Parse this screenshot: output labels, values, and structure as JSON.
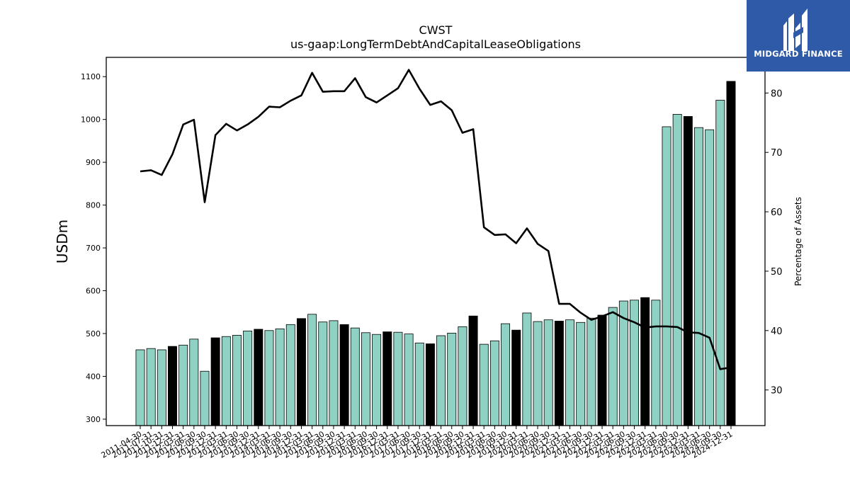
{
  "brand": {
    "name": "MIDGARD FINANCE"
  },
  "chart_data": {
    "type": "bar",
    "title": "CWST",
    "subtitle": "us-gaap:LongTermDebtAndCapitalLeaseObligations",
    "ylabel": "USDm",
    "y2label": "Percentage of Assets",
    "ylim": [
      285,
      1145
    ],
    "y2lim": [
      24,
      86
    ],
    "yticks": [
      300,
      400,
      500,
      600,
      700,
      800,
      900,
      1000,
      1100
    ],
    "y2ticks": [
      30,
      40,
      50,
      60,
      70,
      80
    ],
    "colors": {
      "bar": "#8fd1c2",
      "bar_year_end": "#000000",
      "line": "#000000"
    },
    "categories": [
      "2011-04-30",
      "2011-07-31",
      "2011-10-31",
      "2011-12-31",
      "2012-03-31",
      "2012-06-30",
      "2012-09-30",
      "2012-12-31",
      "2013-03-31",
      "2013-06-30",
      "2013-09-30",
      "2013-12-31",
      "2014-03-31",
      "2014-06-30",
      "2014-09-30",
      "2014-12-31",
      "2015-03-31",
      "2015-06-30",
      "2015-09-30",
      "2015-12-31",
      "2016-03-31",
      "2016-06-30",
      "2016-09-30",
      "2016-12-31",
      "2017-03-31",
      "2017-06-30",
      "2017-09-30",
      "2017-12-31",
      "2018-03-31",
      "2018-06-30",
      "2018-09-30",
      "2018-12-31",
      "2019-03-31",
      "2019-06-30",
      "2019-09-30",
      "2019-12-31",
      "2020-03-31",
      "2020-06-30",
      "2020-09-30",
      "2020-12-31",
      "2021-03-31",
      "2021-06-30",
      "2021-09-30",
      "2021-12-31",
      "2022-03-31",
      "2022-06-30",
      "2022-09-30",
      "2022-12-31",
      "2023-03-31",
      "2023-06-30",
      "2023-09-30",
      "2023-12-31",
      "2024-03-31",
      "2024-06-30",
      "2024-09-30",
      "2024-12-31"
    ],
    "xtick_labels": [
      "2011-04-30",
      "2011-07-31",
      "2011-10-31",
      "2011-12-31",
      "2012-03-31",
      "2012-06-30",
      "2012-09-30",
      "2012-12-31",
      "2013-03-31",
      "2013-06-30",
      "2013-09-30",
      "2013-12-31",
      "2014-03-31",
      "2014-06-30",
      "2014-09-30",
      "2014-12-31",
      "2015-03-31",
      "2015-06-30",
      "2015-09-30",
      "2015-12-31",
      "2016-03-31",
      "2016-06-30",
      "2016-09-30",
      "2016-12-31",
      "2017-03-31",
      "2017-06-30",
      "2017-09-30",
      "2017-12-31",
      "2018-03-31",
      "2018-06-30",
      "2018-09-30",
      "2018-12-31",
      "2019-03-31",
      "2019-06-30",
      "2019-09-30",
      "2019-12-31",
      "2020-03-31",
      "2020-06-30",
      "2020-09-30",
      "2020-12-31",
      "2021-03-31",
      "2021-06-30",
      "2021-09-30",
      "2021-12-31",
      "2022-03-31",
      "2022-06-30",
      "2022-09-30",
      "2022-12-31",
      "2023-03-31",
      "2023-06-30",
      "2023-09-30",
      "2023-12-31",
      "2024-03-31",
      "2024-06-30",
      "2024-09-30",
      "2024-12-31"
    ],
    "values": [
      462,
      465,
      462,
      470,
      473,
      487,
      412,
      490,
      493,
      496,
      506,
      510,
      507,
      511,
      521,
      535,
      545,
      527,
      530,
      521,
      513,
      502,
      498,
      504,
      503,
      499,
      478,
      476,
      495,
      501,
      516,
      541,
      475,
      483,
      523,
      508,
      548,
      528,
      532,
      529,
      532,
      526,
      536,
      543,
      561,
      576,
      578,
      584,
      578,
      983,
      1012,
      1007,
      981,
      976,
      1045,
      1089
    ],
    "year_end": [
      false,
      false,
      false,
      true,
      false,
      false,
      false,
      true,
      false,
      false,
      false,
      true,
      false,
      false,
      false,
      true,
      false,
      false,
      false,
      true,
      false,
      false,
      false,
      true,
      false,
      false,
      false,
      true,
      false,
      false,
      false,
      true,
      false,
      false,
      false,
      true,
      false,
      false,
      false,
      true,
      false,
      false,
      false,
      true,
      false,
      false,
      false,
      true,
      false,
      false,
      false,
      true,
      false,
      false,
      false,
      true
    ],
    "pct_of_assets": [
      66.8,
      67.0,
      66.2,
      69.7,
      74.7,
      75.5,
      61.6,
      72.9,
      74.8,
      73.7,
      74.7,
      76.0,
      77.7,
      77.6,
      78.7,
      79.6,
      83.4,
      80.2,
      80.3,
      80.3,
      82.5,
      79.3,
      78.4,
      79.6,
      80.8,
      83.9,
      80.7,
      78.0,
      78.6,
      77.1,
      73.3,
      73.9,
      57.4,
      56.1,
      56.2,
      54.7,
      57.2,
      54.6,
      53.4,
      44.5,
      44.5,
      43.0,
      41.8,
      42.4,
      43.1,
      42.1,
      41.4,
      40.5,
      40.7,
      40.7,
      40.6,
      39.7,
      39.6,
      38.8,
      33.5,
      33.8
    ]
  }
}
